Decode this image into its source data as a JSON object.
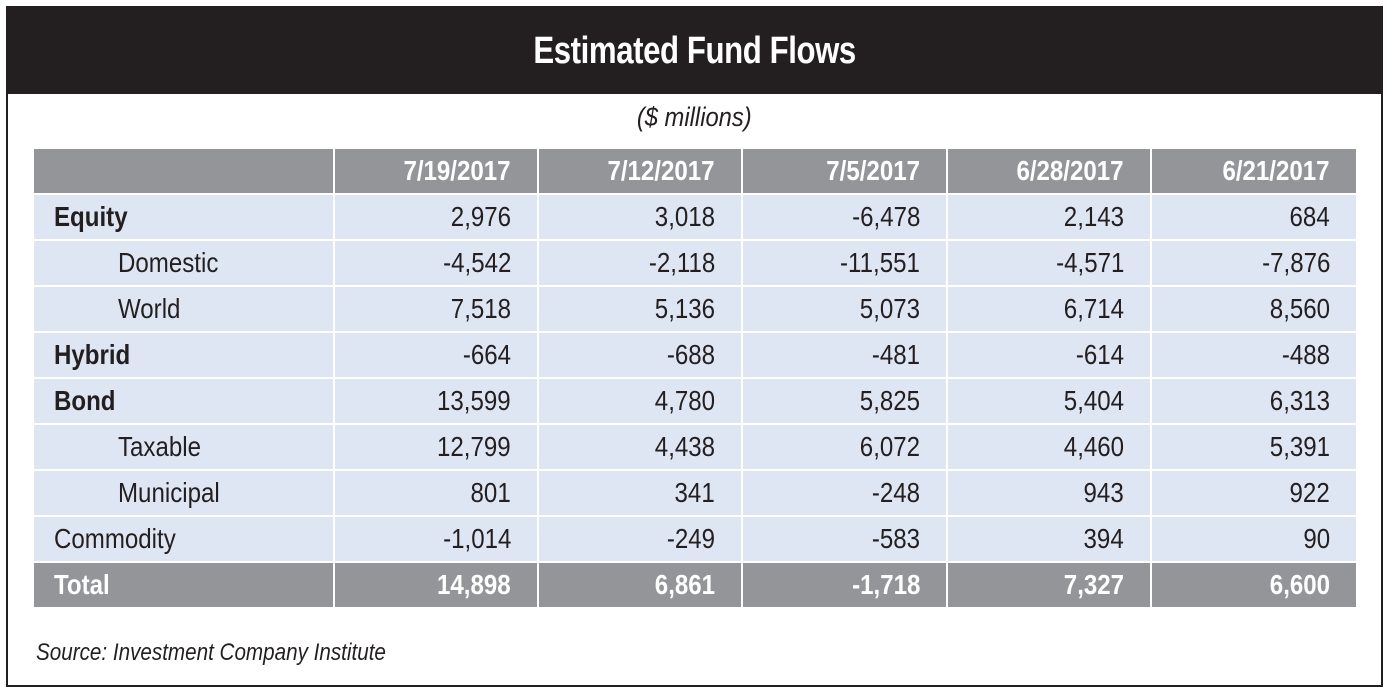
{
  "title": "Estimated Fund Flows",
  "subtitle": "($ millions)",
  "source": "Source: Investment Company Institute",
  "colors": {
    "title_bg": "#231f20",
    "header_bg": "#939598",
    "row_bg": "#dfe6f3",
    "total_bg": "#939598"
  },
  "chart_data": {
    "type": "table",
    "title": "Estimated Fund Flows",
    "units": "($ millions)",
    "columns": [
      "7/19/2017",
      "7/12/2017",
      "7/5/2017",
      "6/28/2017",
      "6/21/2017"
    ],
    "rows": [
      {
        "label": "Equity",
        "style": "bold",
        "values": [
          "2,976",
          "3,018",
          "-6,478",
          "2,143",
          "684"
        ]
      },
      {
        "label": "Domestic",
        "style": "indent",
        "values": [
          "-4,542",
          "-2,118",
          "-11,551",
          "-4,571",
          "-7,876"
        ]
      },
      {
        "label": "World",
        "style": "indent",
        "values": [
          "7,518",
          "5,136",
          "5,073",
          "6,714",
          "8,560"
        ]
      },
      {
        "label": "Hybrid",
        "style": "bold",
        "values": [
          "-664",
          "-688",
          "-481",
          "-614",
          "-488"
        ]
      },
      {
        "label": "Bond",
        "style": "bold",
        "values": [
          "13,599",
          "4,780",
          "5,825",
          "5,404",
          "6,313"
        ]
      },
      {
        "label": "Taxable",
        "style": "indent",
        "values": [
          "12,799",
          "4,438",
          "6,072",
          "4,460",
          "5,391"
        ]
      },
      {
        "label": "Municipal",
        "style": "indent",
        "values": [
          "801",
          "341",
          "-248",
          "943",
          "922"
        ]
      },
      {
        "label": "Commodity",
        "style": "plain",
        "values": [
          "-1,014",
          "-249",
          "-583",
          "394",
          "90"
        ]
      },
      {
        "label": "Total",
        "style": "total",
        "values": [
          "14,898",
          "6,861",
          "-1,718",
          "7,327",
          "6,600"
        ]
      }
    ],
    "source": "Source: Investment Company Institute"
  }
}
